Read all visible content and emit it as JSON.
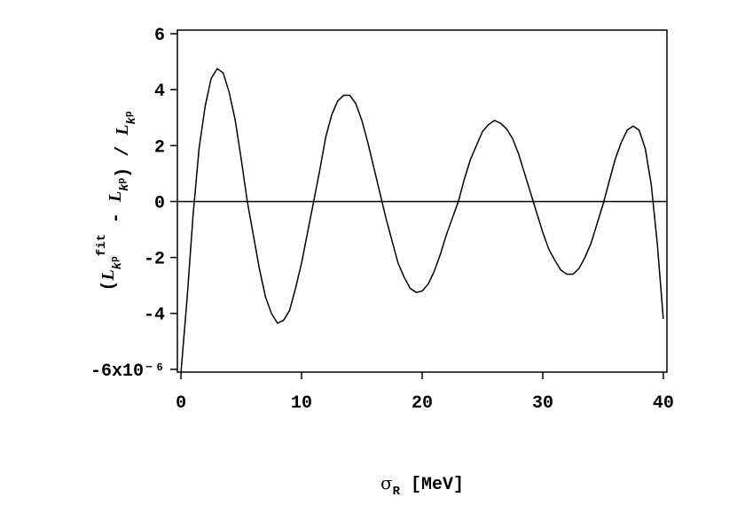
{
  "chart_data": {
    "type": "line",
    "ylabel": [
      "(",
      "L",
      "k",
      "p",
      "fit",
      " - ",
      "L",
      "k",
      "p",
      ")",
      " / ",
      "L",
      "k",
      "p"
    ],
    "xlabel": [
      "σ",
      "R",
      "  [MeV]"
    ],
    "x": [
      0,
      0.5,
      1,
      1.5,
      2,
      2.5,
      3,
      3.5,
      4,
      4.5,
      5,
      5.5,
      6,
      6.5,
      7,
      7.5,
      8,
      8.5,
      9,
      9.5,
      10,
      10.5,
      11,
      11.5,
      12,
      12.5,
      13,
      13.5,
      14,
      14.5,
      15,
      15.5,
      16,
      16.5,
      17,
      17.5,
      18,
      18.5,
      19,
      19.5,
      20,
      20.5,
      21,
      21.5,
      22,
      22.5,
      23,
      23.5,
      24,
      24.5,
      25,
      25.5,
      26,
      26.5,
      27,
      27.5,
      28,
      28.5,
      29,
      29.5,
      30,
      30.5,
      31,
      31.5,
      32,
      32.5,
      33,
      33.5,
      34,
      34.5,
      35,
      35.5,
      36,
      36.5,
      37,
      37.5,
      38,
      38.5,
      39,
      39.5,
      40
    ],
    "series": [
      {
        "color": "#000000",
        "values": [
          -6.1,
          -3.5,
          -0.5,
          1.9,
          3.4,
          4.4,
          4.75,
          4.6,
          3.9,
          2.9,
          1.5,
          0,
          -1.2,
          -2.4,
          -3.4,
          -4.0,
          -4.35,
          -4.25,
          -3.9,
          -3.1,
          -2.2,
          -1.1,
          0,
          1.1,
          2.3,
          3.1,
          3.6,
          3.8,
          3.8,
          3.5,
          2.9,
          2.1,
          1.2,
          0.3,
          -0.6,
          -1.4,
          -2.2,
          -2.7,
          -3.1,
          -3.25,
          -3.2,
          -2.95,
          -2.5,
          -1.9,
          -1.2,
          -0.6,
          0,
          0.8,
          1.5,
          2.0,
          2.5,
          2.75,
          2.9,
          2.8,
          2.6,
          2.25,
          1.7,
          1.0,
          0.3,
          -0.4,
          -1.1,
          -1.7,
          -2.1,
          -2.45,
          -2.6,
          -2.6,
          -2.4,
          -2.0,
          -1.5,
          -0.8,
          -0.1,
          0.7,
          1.5,
          2.1,
          2.55,
          2.7,
          2.55,
          1.9,
          0.6,
          -1.5,
          -4.2
        ]
      }
    ],
    "hline": 0,
    "xlim": [
      -0.3,
      40.3
    ],
    "ylim": [
      -6.1,
      6.13
    ],
    "xticks": [
      0,
      10,
      20,
      30,
      40
    ],
    "yticks": [
      {
        "value": -6,
        "label": "-6x10⁻⁶"
      },
      -4,
      -2,
      0,
      2,
      4,
      6
    ]
  }
}
